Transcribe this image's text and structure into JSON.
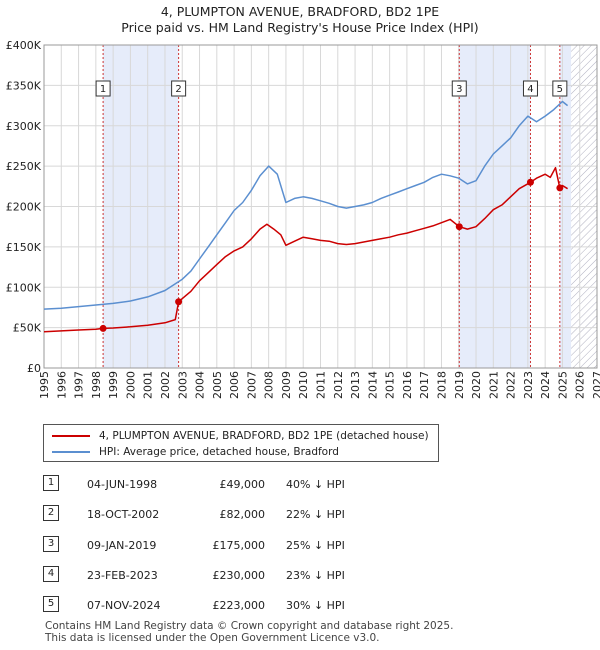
{
  "chart_data": {
    "type": "line",
    "title": "4, PLUMPTON AVENUE, BRADFORD, BD2 1PE",
    "subtitle": "Price paid vs. HM Land Registry's House Price Index (HPI)",
    "xlim": [
      1995,
      2027
    ],
    "ylim": [
      0,
      400000
    ],
    "x_ticks": [
      "1995",
      "1996",
      "1997",
      "1998",
      "1999",
      "2000",
      "2001",
      "2002",
      "2003",
      "2004",
      "2005",
      "2006",
      "2007",
      "2008",
      "2009",
      "2010",
      "2011",
      "2012",
      "2013",
      "2014",
      "2015",
      "2016",
      "2017",
      "2018",
      "2019",
      "2020",
      "2021",
      "2022",
      "2023",
      "2024",
      "2025",
      "2026",
      "2027"
    ],
    "y_ticks": [
      {
        "value": 0,
        "label": "£0"
      },
      {
        "value": 50000,
        "label": "£50K"
      },
      {
        "value": 100000,
        "label": "£100K"
      },
      {
        "value": 150000,
        "label": "£150K"
      },
      {
        "value": 200000,
        "label": "£200K"
      },
      {
        "value": 250000,
        "label": "£250K"
      },
      {
        "value": 300000,
        "label": "£300K"
      },
      {
        "value": 350000,
        "label": "£350K"
      },
      {
        "value": 400000,
        "label": "£400K"
      }
    ],
    "grid": true,
    "series": [
      {
        "name": "4, PLUMPTON AVENUE, BRADFORD, BD2 1PE (detached house)",
        "color": "#cc0000",
        "points": [
          [
            1995.0,
            45000
          ],
          [
            1996.0,
            46000
          ],
          [
            1997.0,
            47000
          ],
          [
            1998.0,
            48000
          ],
          [
            1998.42,
            49000
          ],
          [
            1999.0,
            49500
          ],
          [
            2000.0,
            51000
          ],
          [
            2001.0,
            53000
          ],
          [
            2002.0,
            56000
          ],
          [
            2002.6,
            60000
          ],
          [
            2002.79,
            82000
          ],
          [
            2003.0,
            86000
          ],
          [
            2003.5,
            95000
          ],
          [
            2004.0,
            108000
          ],
          [
            2004.5,
            118000
          ],
          [
            2005.0,
            128000
          ],
          [
            2005.5,
            138000
          ],
          [
            2006.0,
            145000
          ],
          [
            2006.5,
            150000
          ],
          [
            2007.0,
            160000
          ],
          [
            2007.5,
            172000
          ],
          [
            2007.9,
            178000
          ],
          [
            2008.3,
            172000
          ],
          [
            2008.7,
            165000
          ],
          [
            2009.0,
            152000
          ],
          [
            2009.5,
            157000
          ],
          [
            2010.0,
            162000
          ],
          [
            2010.5,
            160000
          ],
          [
            2011.0,
            158000
          ],
          [
            2011.5,
            157000
          ],
          [
            2012.0,
            154000
          ],
          [
            2012.5,
            153000
          ],
          [
            2013.0,
            154000
          ],
          [
            2013.5,
            156000
          ],
          [
            2014.0,
            158000
          ],
          [
            2014.5,
            160000
          ],
          [
            2015.0,
            162000
          ],
          [
            2015.5,
            165000
          ],
          [
            2016.0,
            167000
          ],
          [
            2016.5,
            170000
          ],
          [
            2017.0,
            173000
          ],
          [
            2017.5,
            176000
          ],
          [
            2018.0,
            180000
          ],
          [
            2018.5,
            184000
          ],
          [
            2019.03,
            175000
          ],
          [
            2019.5,
            172000
          ],
          [
            2020.0,
            175000
          ],
          [
            2020.5,
            185000
          ],
          [
            2021.0,
            196000
          ],
          [
            2021.5,
            202000
          ],
          [
            2022.0,
            212000
          ],
          [
            2022.5,
            222000
          ],
          [
            2023.15,
            230000
          ],
          [
            2023.5,
            235000
          ],
          [
            2024.0,
            240000
          ],
          [
            2024.3,
            236000
          ],
          [
            2024.6,
            248000
          ],
          [
            2024.85,
            223000
          ],
          [
            2025.0,
            226000
          ],
          [
            2025.3,
            222000
          ]
        ]
      },
      {
        "name": "HPI: Average price, detached house, Bradford",
        "color": "#5b8fd0",
        "points": [
          [
            1995.0,
            73000
          ],
          [
            1996.0,
            74000
          ],
          [
            1997.0,
            76000
          ],
          [
            1998.0,
            78000
          ],
          [
            1999.0,
            80000
          ],
          [
            2000.0,
            83000
          ],
          [
            2001.0,
            88000
          ],
          [
            2002.0,
            96000
          ],
          [
            2003.0,
            110000
          ],
          [
            2003.5,
            120000
          ],
          [
            2004.0,
            135000
          ],
          [
            2004.5,
            150000
          ],
          [
            2005.0,
            165000
          ],
          [
            2005.5,
            180000
          ],
          [
            2006.0,
            195000
          ],
          [
            2006.5,
            205000
          ],
          [
            2007.0,
            220000
          ],
          [
            2007.5,
            238000
          ],
          [
            2008.0,
            250000
          ],
          [
            2008.5,
            240000
          ],
          [
            2009.0,
            205000
          ],
          [
            2009.5,
            210000
          ],
          [
            2010.0,
            212000
          ],
          [
            2010.5,
            210000
          ],
          [
            2011.0,
            207000
          ],
          [
            2011.5,
            204000
          ],
          [
            2012.0,
            200000
          ],
          [
            2012.5,
            198000
          ],
          [
            2013.0,
            200000
          ],
          [
            2013.5,
            202000
          ],
          [
            2014.0,
            205000
          ],
          [
            2014.5,
            210000
          ],
          [
            2015.0,
            214000
          ],
          [
            2015.5,
            218000
          ],
          [
            2016.0,
            222000
          ],
          [
            2016.5,
            226000
          ],
          [
            2017.0,
            230000
          ],
          [
            2017.5,
            236000
          ],
          [
            2018.0,
            240000
          ],
          [
            2018.5,
            238000
          ],
          [
            2019.0,
            235000
          ],
          [
            2019.5,
            228000
          ],
          [
            2020.0,
            232000
          ],
          [
            2020.5,
            250000
          ],
          [
            2021.0,
            265000
          ],
          [
            2021.5,
            275000
          ],
          [
            2022.0,
            285000
          ],
          [
            2022.5,
            300000
          ],
          [
            2023.0,
            312000
          ],
          [
            2023.5,
            305000
          ],
          [
            2024.0,
            312000
          ],
          [
            2024.5,
            320000
          ],
          [
            2025.0,
            330000
          ],
          [
            2025.3,
            325000
          ]
        ]
      }
    ],
    "sales": [
      {
        "num": "1",
        "x": 1998.42,
        "price": 49000
      },
      {
        "num": "2",
        "x": 2002.79,
        "price": 82000
      },
      {
        "num": "3",
        "x": 2019.03,
        "price": 175000
      },
      {
        "num": "4",
        "x": 2023.15,
        "price": 230000
      },
      {
        "num": "5",
        "x": 2024.85,
        "price": 223000
      }
    ],
    "shaded_spans": [
      [
        1998.42,
        2002.79
      ],
      [
        2019.03,
        2023.15
      ],
      [
        2024.85,
        2025.5
      ]
    ],
    "hatch_from": 2025.5
  },
  "legend": {
    "property": "4, PLUMPTON AVENUE, BRADFORD, BD2 1PE (detached house)",
    "hpi": "HPI: Average price, detached house, Bradford",
    "property_color": "#cc0000",
    "hpi_color": "#5b8fd0"
  },
  "sales_table": [
    {
      "num": "1",
      "date": "04-JUN-1998",
      "price": "£49,000",
      "hpi": "40% ↓ HPI"
    },
    {
      "num": "2",
      "date": "18-OCT-2002",
      "price": "£82,000",
      "hpi": "22% ↓ HPI"
    },
    {
      "num": "3",
      "date": "09-JAN-2019",
      "price": "£175,000",
      "hpi": "25% ↓ HPI"
    },
    {
      "num": "4",
      "date": "23-FEB-2023",
      "price": "£230,000",
      "hpi": "23% ↓ HPI"
    },
    {
      "num": "5",
      "date": "07-NOV-2024",
      "price": "£223,000",
      "hpi": "30% ↓ HPI"
    }
  ],
  "footer": {
    "line1": "Contains HM Land Registry data © Crown copyright and database right 2025.",
    "line2": "This data is licensed under the Open Government Licence v3.0."
  }
}
